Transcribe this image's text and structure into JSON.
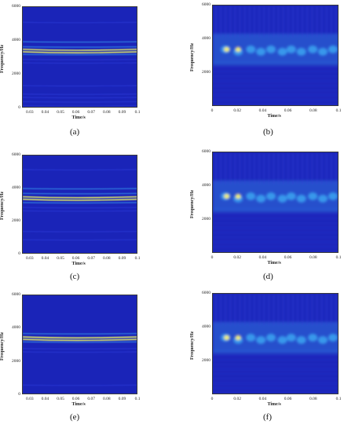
{
  "chart_data": [
    {
      "id": "a",
      "type": "heatmap",
      "caption": "(a)",
      "xlabel": "Time/s",
      "ylabel": "Frequency/Hz",
      "xticks": [
        "0.03",
        "0.04",
        "0.05",
        "0.06",
        "0.07",
        "0.08",
        "0.09",
        "0.1"
      ],
      "yticks": [
        "0",
        "2000",
        "4000",
        "6000"
      ],
      "xlim": [
        0.025,
        0.1
      ],
      "ylim": [
        0,
        6000
      ],
      "style": "narrow",
      "bands_hz": [
        5100,
        3950,
        3650,
        3500,
        3350,
        3200,
        2900,
        2700,
        1350,
        850,
        650,
        400,
        150
      ]
    },
    {
      "id": "b",
      "type": "heatmap",
      "caption": "(b)",
      "xlabel": "Time/s",
      "ylabel": "Frequency/Hz",
      "xticks": [
        "0",
        "0.02",
        "0.04",
        "0.06",
        "0.08",
        "0.1"
      ],
      "yticks": [
        "2000",
        "4000",
        "6000"
      ],
      "xlim": [
        0,
        0.1
      ],
      "ylim": [
        0,
        6000
      ],
      "style": "wavelet",
      "peak_hz": 3400
    },
    {
      "id": "c",
      "type": "heatmap",
      "caption": "(c)",
      "xlabel": "Time/s",
      "ylabel": "Frequency/Hz",
      "xticks": [
        "0.03",
        "0.04",
        "0.05",
        "0.06",
        "0.07",
        "0.08",
        "0.09",
        "0.1"
      ],
      "yticks": [
        "0",
        "2000",
        "4000",
        "6000"
      ],
      "xlim": [
        0.025,
        0.1
      ],
      "ylim": [
        0,
        6000
      ],
      "style": "narrow",
      "bands_hz": [
        5150,
        4000,
        3700,
        3500,
        3350,
        3150,
        2850,
        2650,
        1400,
        900
      ]
    },
    {
      "id": "d",
      "type": "heatmap",
      "caption": "(d)",
      "xlabel": "Time/s",
      "ylabel": "Frequency/Hz",
      "xticks": [
        "0",
        "0.02",
        "0.04",
        "0.06",
        "0.08",
        "0.1"
      ],
      "yticks": [
        "2000",
        "4000",
        "6000"
      ],
      "xlim": [
        0,
        0.1
      ],
      "ylim": [
        0,
        6000
      ],
      "style": "wavelet",
      "peak_hz": 3400
    },
    {
      "id": "e",
      "type": "heatmap",
      "caption": "(e)",
      "xlabel": "Time/s",
      "ylabel": "Frequency/Hz",
      "xticks": [
        "0.03",
        "0.04",
        "0.05",
        "0.06",
        "0.07",
        "0.08",
        "0.09",
        "0.1"
      ],
      "yticks": [
        "0",
        "2000",
        "4000",
        "6000"
      ],
      "xlim": [
        0.025,
        0.1
      ],
      "ylim": [
        0,
        6000
      ],
      "style": "narrow",
      "bands_hz": [
        3700,
        3500,
        3350,
        3200,
        2800,
        2600,
        600
      ]
    },
    {
      "id": "f",
      "type": "heatmap",
      "caption": "(f)",
      "xlabel": "Time/s",
      "ylabel": "Frequency/Hz",
      "xticks": [
        "0",
        "0.02",
        "0.04",
        "0.06",
        "0.08",
        "0.1"
      ],
      "yticks": [
        "2000",
        "4000",
        "6000"
      ],
      "xlim": [
        0,
        0.1
      ],
      "ylim": [
        0,
        6000
      ],
      "style": "wavelet",
      "peak_hz": 3400
    }
  ],
  "colors": {
    "background": "#1a24b8",
    "low": "#2b3ad6",
    "mid": "#3aa0f0",
    "high": "#e8f060",
    "peak": "#f4f070"
  }
}
